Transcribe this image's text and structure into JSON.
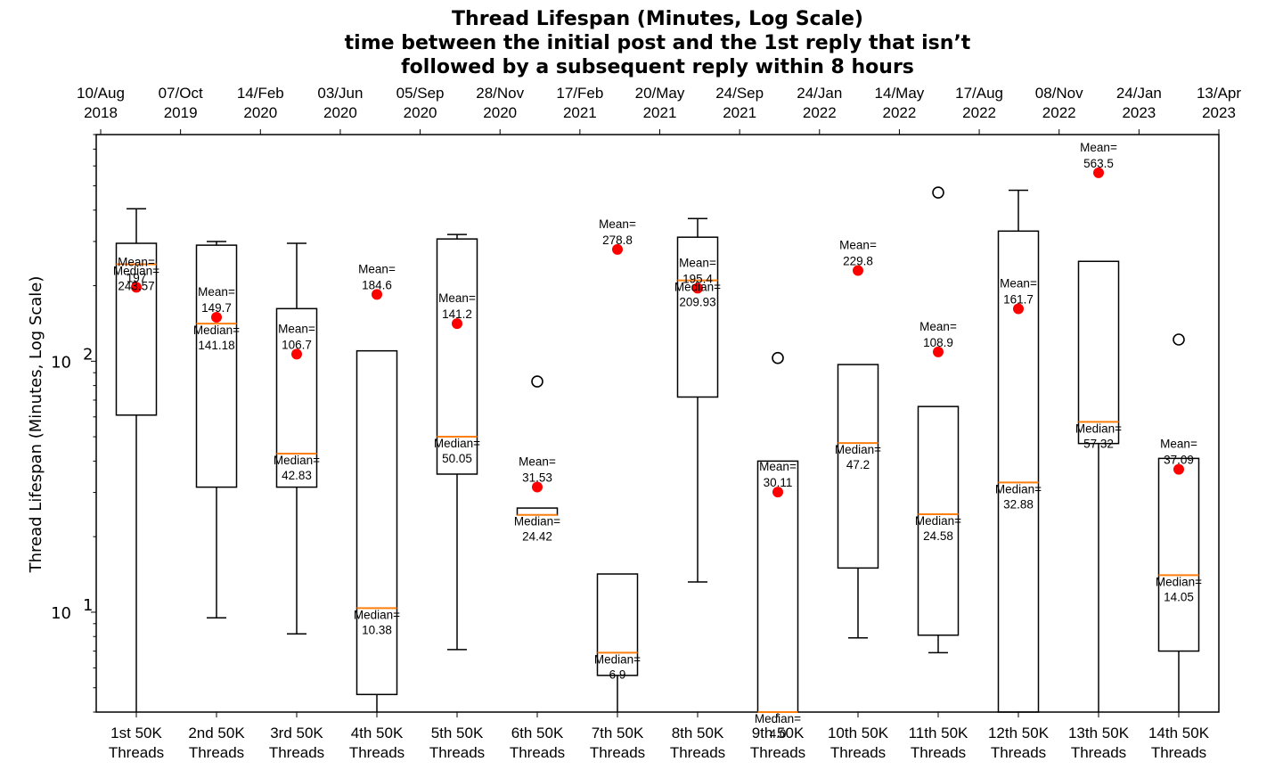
{
  "chart_data": {
    "type": "box",
    "title": [
      "Thread Lifespan (Minutes, Log Scale)",
      "time between the initial post and the 1st reply that isn’t",
      "followed by a subsequent reply within 8 hours"
    ],
    "ylabel": "Thread Lifespan (Minutes, Log Scale)",
    "yscale": "log",
    "ylim": [
      4,
      800
    ],
    "yticks": [
      {
        "value": 10,
        "base": "10",
        "exp": "1"
      },
      {
        "value": 100,
        "base": "10",
        "exp": "2"
      }
    ],
    "top_axis": [
      {
        "day": "10/Aug",
        "year": "2018"
      },
      {
        "day": "07/Oct",
        "year": "2019"
      },
      {
        "day": "14/Feb",
        "year": "2020"
      },
      {
        "day": "03/Jun",
        "year": "2020"
      },
      {
        "day": "05/Sep",
        "year": "2020"
      },
      {
        "day": "28/Nov",
        "year": "2020"
      },
      {
        "day": "17/Feb",
        "year": "2021"
      },
      {
        "day": "20/May",
        "year": "2021"
      },
      {
        "day": "24/Sep",
        "year": "2021"
      },
      {
        "day": "24/Jan",
        "year": "2022"
      },
      {
        "day": "14/May",
        "year": "2022"
      },
      {
        "day": "17/Aug",
        "year": "2022"
      },
      {
        "day": "08/Nov",
        "year": "2022"
      },
      {
        "day": "24/Jan",
        "year": "2023"
      },
      {
        "day": "13/Apr",
        "year": "2023"
      }
    ],
    "mean_prefix": "Mean=",
    "median_prefix": "Median=",
    "colors": {
      "box": "#000000",
      "median": "#ff7f0e",
      "mean": "#ff0000",
      "flier": "#000000"
    },
    "categories": [
      {
        "label1": "1st 50K",
        "label2": "Threads",
        "whislo": 4,
        "q1": 61,
        "median": 243.57,
        "q3": 295,
        "whishi": 405,
        "mean": 197,
        "mean_label": "197",
        "median_label": "243.57",
        "fliers": []
      },
      {
        "label1": "2nd 50K",
        "label2": "Threads",
        "whislo": 9.5,
        "q1": 31.5,
        "median": 141.18,
        "q3": 290,
        "whishi": 300,
        "mean": 149.7,
        "mean_label": "149.7",
        "median_label": "141.18",
        "fliers": []
      },
      {
        "label1": "3rd 50K",
        "label2": "Threads",
        "whislo": 8.2,
        "q1": 31.5,
        "median": 42.83,
        "q3": 162,
        "whishi": 295,
        "mean": 106.7,
        "mean_label": "106.7",
        "median_label": "42.83",
        "fliers": []
      },
      {
        "label1": "4th 50K",
        "label2": "Threads",
        "whislo": 4,
        "q1": 4.7,
        "median": 10.38,
        "q3": 110,
        "whishi": 110,
        "mean": 184.6,
        "mean_label": "184.6",
        "median_label": "10.38",
        "fliers": []
      },
      {
        "label1": "5th 50K",
        "label2": "Threads",
        "whislo": 7.1,
        "q1": 35.5,
        "median": 50.05,
        "q3": 307,
        "whishi": 320,
        "mean": 141.2,
        "mean_label": "141.2",
        "median_label": "50.05",
        "fliers": []
      },
      {
        "label1": "6th 50K",
        "label2": "Threads",
        "whislo": 24.42,
        "q1": 24.42,
        "median": 24.42,
        "q3": 26,
        "whishi": 26,
        "mean": 31.53,
        "mean_label": "31.53",
        "median_label": "24.42",
        "fliers": [
          83
        ]
      },
      {
        "label1": "7th 50K",
        "label2": "Threads",
        "whislo": 4,
        "q1": 5.6,
        "median": 6.9,
        "q3": 14.2,
        "whishi": 14.2,
        "mean": 278.8,
        "mean_label": "278.8",
        "median_label": "6.9",
        "fliers": []
      },
      {
        "label1": "8th 50K",
        "label2": "Threads",
        "whislo": 13.2,
        "q1": 72,
        "median": 209.93,
        "q3": 312,
        "whishi": 370,
        "mean": 195.4,
        "mean_label": "195.4",
        "median_label": "209.93",
        "fliers": []
      },
      {
        "label1": "9th 50K",
        "label2": "Threads",
        "whislo": 4,
        "q1": 4,
        "median": 4,
        "q3": 40,
        "whishi": 40,
        "mean": 30.11,
        "mean_label": "30.11",
        "median_label": "4.0",
        "fliers": [
          103
        ]
      },
      {
        "label1": "10th 50K",
        "label2": "Threads",
        "whislo": 7.9,
        "q1": 15,
        "median": 47.2,
        "q3": 97,
        "whishi": 97,
        "mean": 229.8,
        "mean_label": "229.8",
        "median_label": "47.2",
        "fliers": []
      },
      {
        "label1": "11th 50K",
        "label2": "Threads",
        "whislo": 6.9,
        "q1": 8.1,
        "median": 24.58,
        "q3": 66,
        "whishi": 66,
        "mean": 108.9,
        "mean_label": "108.9",
        "median_label": "24.58",
        "fliers": [
          470
        ]
      },
      {
        "label1": "12th 50K",
        "label2": "Threads",
        "whislo": 4,
        "q1": 4,
        "median": 32.88,
        "q3": 330,
        "whishi": 480,
        "mean": 161.7,
        "mean_label": "161.7",
        "median_label": "32.88",
        "fliers": []
      },
      {
        "label1": "13th 50K",
        "label2": "Threads",
        "whislo": 4,
        "q1": 47,
        "median": 57.32,
        "q3": 250,
        "whishi": 250,
        "mean": 563.5,
        "mean_label": "563.5",
        "median_label": "57.32",
        "fliers": []
      },
      {
        "label1": "14th 50K",
        "label2": "Threads",
        "whislo": 4,
        "q1": 7,
        "median": 14.05,
        "q3": 41,
        "whishi": 41,
        "mean": 37.09,
        "mean_label": "37.09",
        "median_label": "14.05",
        "fliers": [
          122
        ]
      }
    ]
  }
}
